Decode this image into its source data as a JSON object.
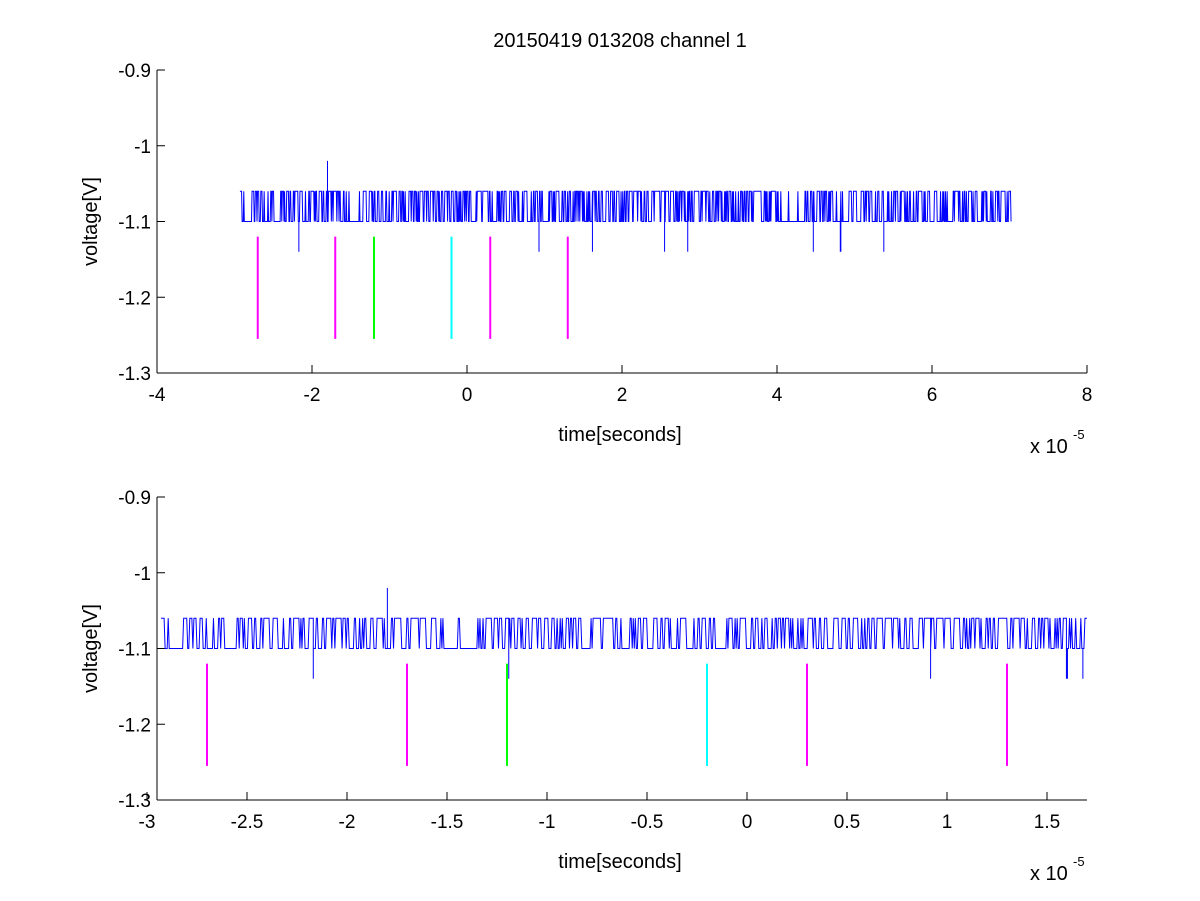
{
  "figure": {
    "title": "20150419 013208 channel 1"
  },
  "chart_data": [
    {
      "type": "line",
      "title": "20150419 013208 channel 1",
      "xlabel": "time[seconds]",
      "ylabel": "voltage[V]",
      "x_exponent_label": "x 10",
      "x_exponent": "-5",
      "xlim": [
        -4,
        8
      ],
      "ylim": [
        -1.3,
        -0.9
      ],
      "x_ticks": [
        -4,
        -2,
        0,
        2,
        4,
        6,
        8
      ],
      "x_tick_labels": [
        "-4",
        "-2",
        "0",
        "2",
        "4",
        "6",
        "8"
      ],
      "y_ticks": [
        -0.9,
        -1,
        -1.1,
        -1.2,
        -1.3
      ],
      "y_tick_labels": [
        "-0.9",
        "-1",
        "-1.1",
        "-1.2",
        "-1.3"
      ],
      "grid": false,
      "signal": {
        "color": "#0000ff",
        "x_range": [
          -2.93,
          7.02
        ],
        "baseline": -1.1,
        "high_level": -1.06,
        "peak": {
          "x": -1.8,
          "y": -1.02
        },
        "dips": [
          {
            "x": -2.17,
            "y": -1.14
          },
          {
            "x": 0.93,
            "y": -1.14
          },
          {
            "x": 1.62,
            "y": -1.14
          },
          {
            "x": 2.55,
            "y": -1.14
          },
          {
            "x": 2.85,
            "y": -1.14
          },
          {
            "x": 4.47,
            "y": -1.14
          },
          {
            "x": 4.82,
            "y": -1.14
          },
          {
            "x": 5.38,
            "y": -1.14
          }
        ]
      },
      "markers": [
        {
          "x": -2.7,
          "y1": -1.12,
          "y2": -1.255,
          "color": "#ff00ff"
        },
        {
          "x": -1.7,
          "y1": -1.12,
          "y2": -1.255,
          "color": "#ff00ff"
        },
        {
          "x": -1.2,
          "y1": -1.12,
          "y2": -1.255,
          "color": "#00ff00"
        },
        {
          "x": -0.2,
          "y1": -1.12,
          "y2": -1.255,
          "color": "#00ffff"
        },
        {
          "x": 0.3,
          "y1": -1.12,
          "y2": -1.255,
          "color": "#ff00ff"
        },
        {
          "x": 1.3,
          "y1": -1.12,
          "y2": -1.255,
          "color": "#ff00ff"
        }
      ]
    },
    {
      "type": "line",
      "title": "",
      "xlabel": "time[seconds]",
      "ylabel": "voltage[V]",
      "x_exponent_label": "x 10",
      "x_exponent": "-5",
      "xlim": [
        -2.95,
        1.7
      ],
      "ylim": [
        -1.3,
        -0.9
      ],
      "x_ticks": [
        -3,
        -2.5,
        -2,
        -1.5,
        -1,
        -0.5,
        0,
        0.5,
        1,
        1.5
      ],
      "x_tick_labels": [
        "-3",
        "-2.5",
        "-2",
        "-1.5",
        "-1",
        "-0.5",
        "0",
        "0.5",
        "1",
        "1.5"
      ],
      "y_ticks": [
        -0.9,
        -1,
        -1.1,
        -1.2,
        -1.3
      ],
      "y_tick_labels": [
        "-0.9",
        "-1",
        "-1.1",
        "-1.2",
        "-1.3"
      ],
      "grid": false,
      "signal": {
        "color": "#0000ff",
        "x_range": [
          -2.93,
          1.7
        ],
        "baseline": -1.1,
        "high_level": -1.06,
        "peak": {
          "x": -1.8,
          "y": -1.02
        },
        "dips": [
          {
            "x": -2.17,
            "y": -1.14
          },
          {
            "x": -1.19,
            "y": -1.14
          },
          {
            "x": 0.92,
            "y": -1.14
          },
          {
            "x": 1.6,
            "y": -1.14
          },
          {
            "x": 1.68,
            "y": -1.14
          }
        ]
      },
      "markers": [
        {
          "x": -2.7,
          "y1": -1.12,
          "y2": -1.255,
          "color": "#ff00ff"
        },
        {
          "x": -1.7,
          "y1": -1.12,
          "y2": -1.255,
          "color": "#ff00ff"
        },
        {
          "x": -1.2,
          "y1": -1.12,
          "y2": -1.255,
          "color": "#00ff00"
        },
        {
          "x": -0.2,
          "y1": -1.12,
          "y2": -1.255,
          "color": "#00ffff"
        },
        {
          "x": 0.3,
          "y1": -1.12,
          "y2": -1.255,
          "color": "#ff00ff"
        },
        {
          "x": 1.3,
          "y1": -1.12,
          "y2": -1.255,
          "color": "#ff00ff"
        }
      ]
    }
  ]
}
